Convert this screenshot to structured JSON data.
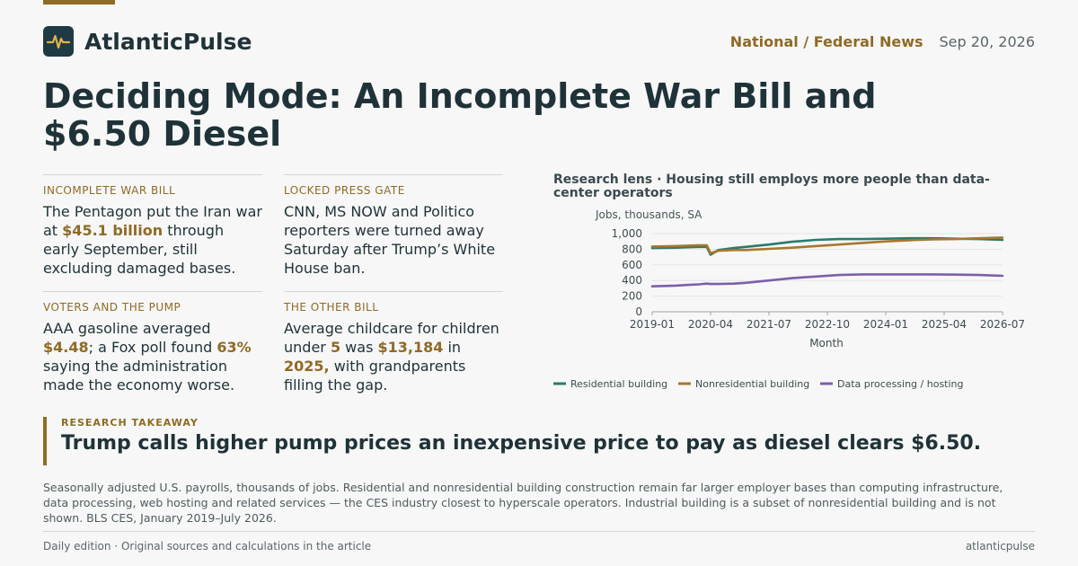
{
  "brand": {
    "name": "AtlanticPulse",
    "logo_icon": "pulse-icon"
  },
  "header": {
    "section": "National / Federal News",
    "date": "Sep 20, 2026"
  },
  "headline": "Deciding Mode: An Incomplete War Bill and $6.50 Diesel",
  "cards": [
    {
      "kicker": "INCOMPLETE WAR BILL",
      "body": [
        {
          "t": "The Pentagon put the Iran war at "
        },
        {
          "t": "$45.1 billion",
          "hl": true
        },
        {
          "t": " through early September, still excluding damaged bases."
        }
      ]
    },
    {
      "kicker": "LOCKED PRESS GATE",
      "body": [
        {
          "t": "CNN, MS NOW and Politico reporters were turned away Saturday after Trump’s White House ban."
        }
      ]
    },
    {
      "kicker": "VOTERS AND THE PUMP",
      "body": [
        {
          "t": "AAA gasoline averaged "
        },
        {
          "t": "$4.48",
          "hl": true
        },
        {
          "t": "; a Fox poll found "
        },
        {
          "t": "63%",
          "hl": true
        },
        {
          "t": " saying the administration made the economy worse."
        }
      ]
    },
    {
      "kicker": "THE OTHER BILL",
      "body": [
        {
          "t": "Average childcare for children under "
        },
        {
          "t": "5",
          "hl": true
        },
        {
          "t": " was "
        },
        {
          "t": "$13,184",
          "hl": true
        },
        {
          "t": " in "
        },
        {
          "t": "2025,",
          "hl": true
        },
        {
          "t": " with grandparents filling the gap."
        }
      ]
    }
  ],
  "chart_data": {
    "type": "line",
    "title": "Research lens · Housing still employs more people than data-center operators",
    "ylabel": "Jobs, thousands, SA",
    "xlabel": "Month",
    "ylim": [
      0,
      1000
    ],
    "yticks": [
      0,
      200,
      400,
      600,
      800,
      1000
    ],
    "ytick_labels": [
      "0",
      "200",
      "400",
      "600",
      "800",
      "1,000"
    ],
    "xlim": [
      "2019-01",
      "2026-07"
    ],
    "xtick_labels": [
      "2019-01",
      "2020-04",
      "2021-07",
      "2022-10",
      "2024-01",
      "2025-04",
      "2026-07"
    ],
    "grid": true,
    "legend_position": "bottom",
    "x": [
      "2019-01",
      "2019-07",
      "2020-01",
      "2020-03",
      "2020-04",
      "2020-06",
      "2020-10",
      "2021-01",
      "2021-07",
      "2022-01",
      "2022-07",
      "2023-01",
      "2023-07",
      "2024-01",
      "2024-07",
      "2025-01",
      "2025-07",
      "2026-01",
      "2026-07"
    ],
    "series": [
      {
        "name": "Residential building",
        "color": "#2a7a6c",
        "values": [
          815,
          820,
          830,
          830,
          730,
          790,
          815,
          830,
          860,
          895,
          920,
          930,
          930,
          935,
          940,
          940,
          935,
          930,
          920
        ]
      },
      {
        "name": "Nonresidential building",
        "color": "#a8772e",
        "values": [
          835,
          840,
          850,
          850,
          750,
          780,
          790,
          790,
          805,
          820,
          840,
          860,
          880,
          900,
          915,
          925,
          930,
          940,
          950
        ]
      },
      {
        "name": "Data processing / hosting",
        "color": "#7d5ea8",
        "values": [
          325,
          335,
          350,
          360,
          355,
          355,
          360,
          370,
          400,
          430,
          450,
          470,
          478,
          478,
          478,
          478,
          475,
          470,
          460
        ]
      }
    ]
  },
  "takeaway": {
    "kicker": "RESEARCH TAKEAWAY",
    "text": "Trump calls higher pump prices an inexpensive price to pay as diesel clears $6.50."
  },
  "note": "Seasonally adjusted U.S. payrolls, thousands of jobs. Residential and nonresidential building construction remain far larger employer bases than computing infrastructure, data processing, web hosting and related services — the CES industry closest to hyperscale operators. Industrial building is a subset of nonresidential building and is not shown. BLS CES, January 2019–July 2026.",
  "footer": {
    "left": "Daily edition · Original sources and calculations in the article",
    "right": "atlanticpulse"
  },
  "colors": {
    "accent": "#8f6a26",
    "ink": "#1f3238",
    "logo_bg": "#1f3a44"
  }
}
